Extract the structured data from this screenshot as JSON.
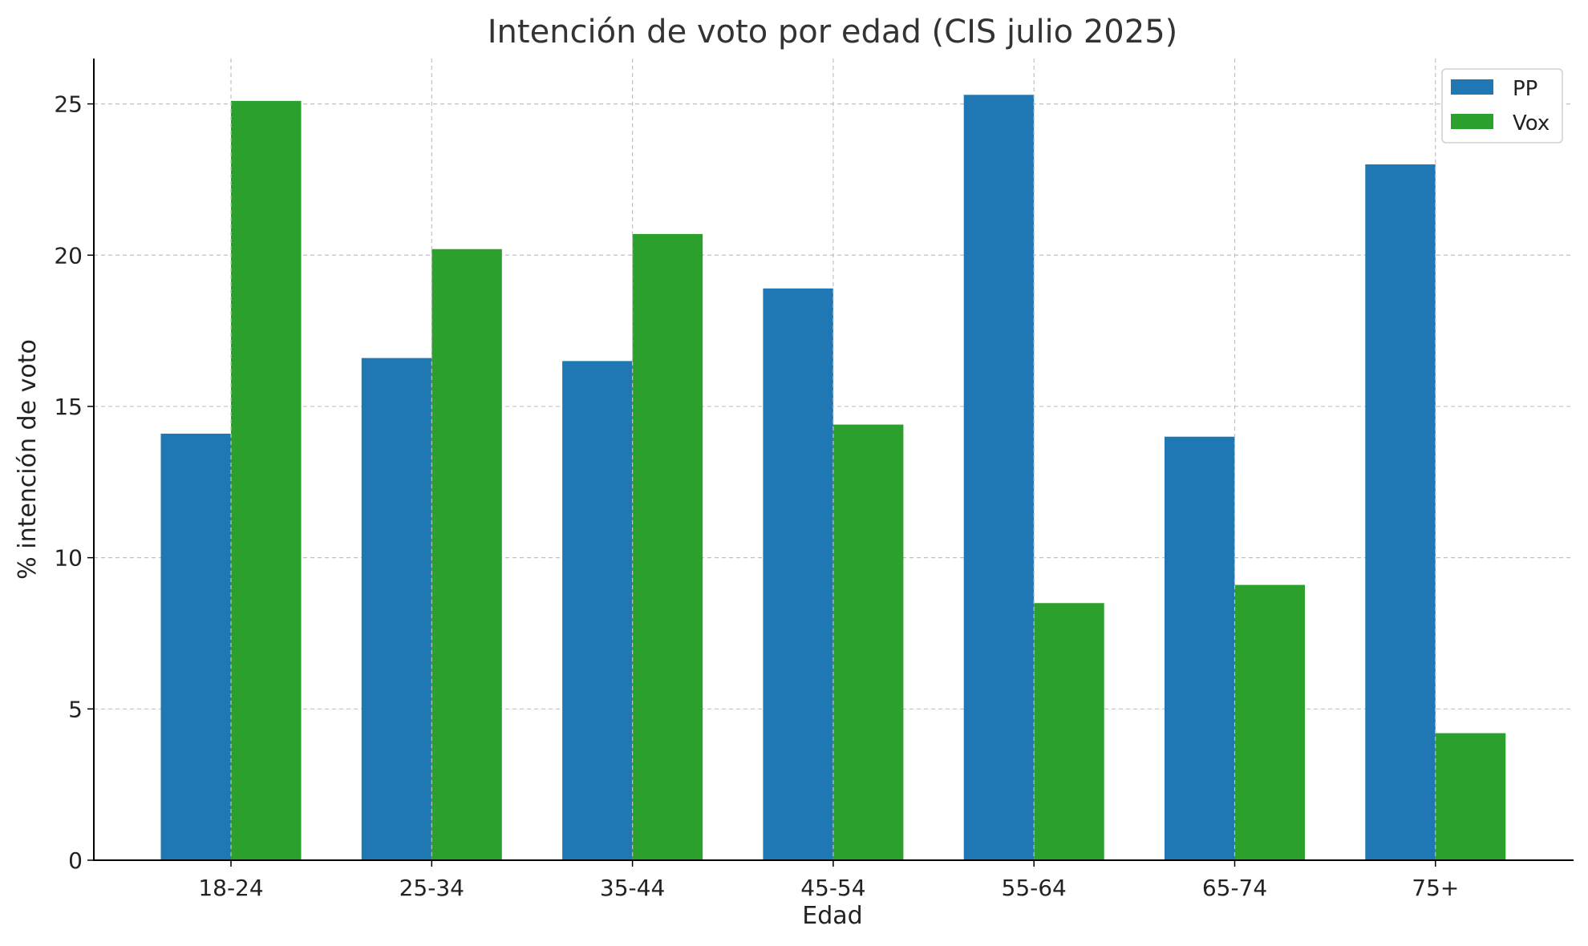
{
  "chart_data": {
    "type": "bar",
    "title": "Intención de voto por edad (CIS julio 2025)",
    "xlabel": "Edad",
    "ylabel": "% intención de voto",
    "categories": [
      "18-24",
      "25-34",
      "35-44",
      "45-54",
      "55-64",
      "65-74",
      "75+"
    ],
    "series": [
      {
        "name": "PP",
        "color": "#1f77b4",
        "values": [
          14.1,
          16.6,
          16.5,
          18.9,
          25.3,
          14.0,
          23.0
        ]
      },
      {
        "name": "Vox",
        "color": "#2ca02c",
        "values": [
          25.1,
          20.2,
          20.7,
          14.4,
          8.5,
          9.1,
          4.2
        ]
      }
    ],
    "ylim": [
      0,
      26.5
    ],
    "yticks": [
      0,
      5,
      10,
      15,
      20,
      25
    ],
    "grid": true,
    "legend": "top-right"
  }
}
